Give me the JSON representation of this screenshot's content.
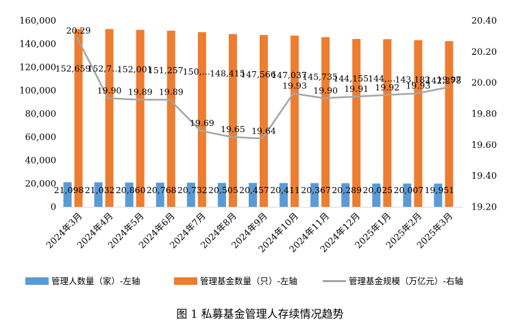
{
  "chart_data": {
    "type": "bar",
    "categories": [
      "2024年3月",
      "2024年4月",
      "2024年5月",
      "2024年6月",
      "2024年7月",
      "2024年8月",
      "2024年9月",
      "2024年10月",
      "2024年11月",
      "2024年12月",
      "2025年1月",
      "2025年2月",
      "2025年3月"
    ],
    "series": [
      {
        "name": "管理人数量（家）-左轴",
        "type": "bar",
        "axis": "left",
        "color": "#5B9BD5",
        "values": [
          21098,
          21032,
          20860,
          20768,
          20732,
          20505,
          20457,
          20411,
          20367,
          20289,
          20025,
          20007,
          19951
        ],
        "labels": [
          "21,098",
          "21,032",
          "20,860",
          "20,768",
          "20,732",
          "20,505",
          "20,457",
          "20,411",
          "20,367",
          "20,289",
          "20,025",
          "20,007",
          "19,951"
        ]
      },
      {
        "name": "管理基金数量（只）-左轴",
        "type": "bar",
        "axis": "left",
        "color": "#ED7D31",
        "values": [
          152659,
          152700,
          152001,
          151257,
          150000,
          148415,
          147566,
          147037,
          145735,
          144155,
          144000,
          143182,
          142278
        ],
        "labels": [
          "152,659",
          "152,7…",
          "152,001",
          "151,257",
          "150,…",
          "148,415",
          "147,566",
          "147,037",
          "145,735",
          "144,155",
          "144,…",
          "143,182",
          "142,278"
        ]
      },
      {
        "name": "管理基金规模（万亿元）-右轴",
        "type": "line",
        "axis": "right",
        "color": "#A5A5A5",
        "values": [
          20.29,
          19.9,
          19.89,
          19.89,
          19.69,
          19.65,
          19.64,
          19.93,
          19.9,
          19.91,
          19.92,
          19.93,
          19.97
        ],
        "labels": [
          "20.29",
          "19.90",
          "19.89",
          "19.89",
          "19.69",
          "19.65",
          "19.64",
          "19.93",
          "19.90",
          "19.91",
          "19.92",
          "19.93",
          "19.97"
        ]
      }
    ],
    "left_axis": {
      "min": 0,
      "max": 160000,
      "ticks": [
        "0",
        "20,000",
        "40,000",
        "60,000",
        "80,000",
        "100,000",
        "120,000",
        "140,000",
        "160,000"
      ]
    },
    "right_axis": {
      "min": 19.2,
      "max": 20.4,
      "ticks": [
        "19.20",
        "19.40",
        "19.60",
        "19.80",
        "20.00",
        "20.20",
        "20.40"
      ]
    },
    "grid": false,
    "legend_position": "bottom",
    "caption": "图 1  私募基金管理人存续情况趋势"
  }
}
